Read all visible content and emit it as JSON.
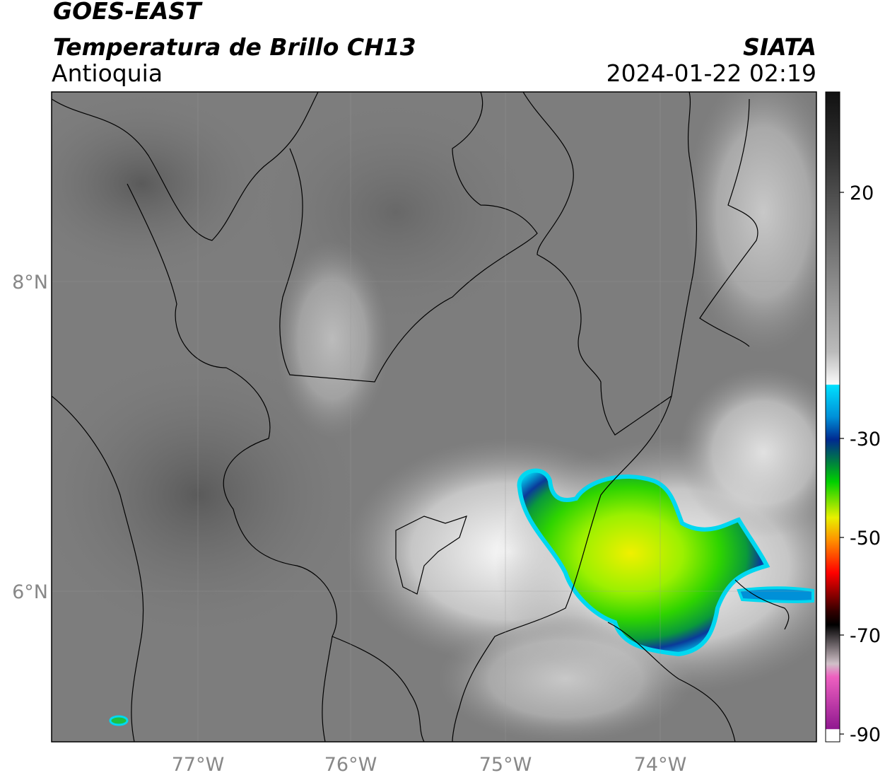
{
  "header": {
    "title": "GOES-EAST",
    "subtitle": "Temperatura de Brillo CH13",
    "region": "Antioquia",
    "source": "SIATA",
    "datetime": "2024-01-22 02:19"
  },
  "map": {
    "x_labels": [
      "77°W",
      "76°W",
      "75°W",
      "74°W"
    ],
    "y_labels": [
      "8°N",
      "6°N"
    ]
  },
  "colorbar": {
    "ticks": [
      "20",
      "-30",
      "-50",
      "-70",
      "-90"
    ]
  }
}
